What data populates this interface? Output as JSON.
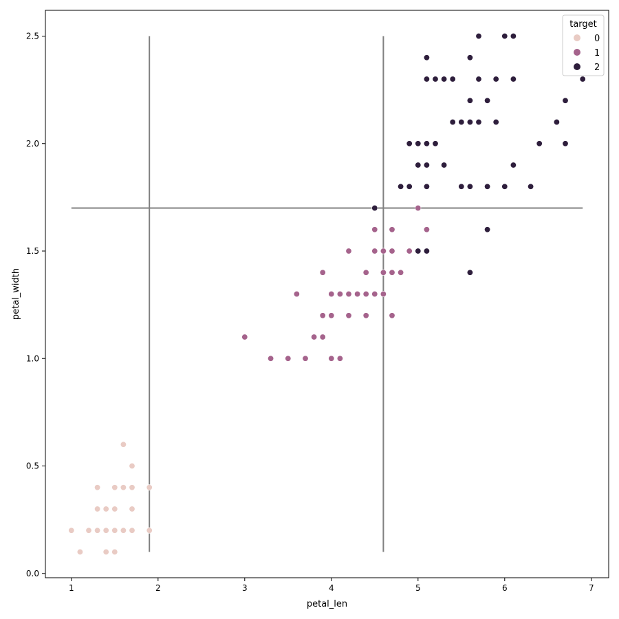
{
  "chart_data": {
    "type": "scatter",
    "xlabel": "petal_len",
    "ylabel": "petal_width",
    "xlim": [
      0.7,
      7.2
    ],
    "ylim": [
      -0.02,
      2.62
    ],
    "xticks": [
      1,
      2,
      3,
      4,
      5,
      6,
      7
    ],
    "xtick_labels": [
      "1",
      "2",
      "3",
      "4",
      "5",
      "6",
      "7"
    ],
    "yticks": [
      0.0,
      0.5,
      1.0,
      1.5,
      2.0,
      2.5
    ],
    "ytick_labels": [
      "0.0",
      "0.5",
      "1.0",
      "1.5",
      "2.0",
      "2.5"
    ],
    "grid": false,
    "legend": {
      "title": "target",
      "placement": "top-right",
      "entries": [
        {
          "label": "0",
          "color": "#e9cbc4"
        },
        {
          "label": "1",
          "color": "#a5638c"
        },
        {
          "label": "2",
          "color": "#2e1e3c"
        }
      ]
    },
    "series": [
      {
        "name": "0",
        "color": "#e9cbc4",
        "points": [
          [
            1.0,
            0.2
          ],
          [
            1.1,
            0.1
          ],
          [
            1.2,
            0.2
          ],
          [
            1.3,
            0.2
          ],
          [
            1.3,
            0.3
          ],
          [
            1.3,
            0.4
          ],
          [
            1.4,
            0.1
          ],
          [
            1.4,
            0.2
          ],
          [
            1.4,
            0.3
          ],
          [
            1.5,
            0.1
          ],
          [
            1.5,
            0.2
          ],
          [
            1.5,
            0.3
          ],
          [
            1.5,
            0.4
          ],
          [
            1.6,
            0.2
          ],
          [
            1.6,
            0.4
          ],
          [
            1.6,
            0.6
          ],
          [
            1.7,
            0.2
          ],
          [
            1.7,
            0.3
          ],
          [
            1.7,
            0.4
          ],
          [
            1.7,
            0.5
          ],
          [
            1.9,
            0.2
          ],
          [
            1.9,
            0.4
          ]
        ]
      },
      {
        "name": "1",
        "color": "#a5638c",
        "points": [
          [
            3.0,
            1.1
          ],
          [
            3.3,
            1.0
          ],
          [
            3.5,
            1.0
          ],
          [
            3.6,
            1.3
          ],
          [
            3.7,
            1.0
          ],
          [
            3.8,
            1.1
          ],
          [
            3.9,
            1.1
          ],
          [
            3.9,
            1.2
          ],
          [
            3.9,
            1.4
          ],
          [
            4.0,
            1.0
          ],
          [
            4.0,
            1.2
          ],
          [
            4.0,
            1.3
          ],
          [
            4.1,
            1.0
          ],
          [
            4.1,
            1.3
          ],
          [
            4.2,
            1.2
          ],
          [
            4.2,
            1.3
          ],
          [
            4.2,
            1.5
          ],
          [
            4.3,
            1.3
          ],
          [
            4.4,
            1.2
          ],
          [
            4.4,
            1.3
          ],
          [
            4.4,
            1.4
          ],
          [
            4.5,
            1.3
          ],
          [
            4.5,
            1.5
          ],
          [
            4.5,
            1.6
          ],
          [
            4.6,
            1.3
          ],
          [
            4.6,
            1.4
          ],
          [
            4.6,
            1.5
          ],
          [
            4.7,
            1.2
          ],
          [
            4.7,
            1.4
          ],
          [
            4.7,
            1.5
          ],
          [
            4.7,
            1.6
          ],
          [
            4.8,
            1.4
          ],
          [
            4.9,
            1.5
          ],
          [
            5.0,
            1.7
          ],
          [
            5.1,
            1.6
          ]
        ]
      },
      {
        "name": "2",
        "color": "#2e1e3c",
        "points": [
          [
            4.5,
            1.7
          ],
          [
            4.8,
            1.8
          ],
          [
            4.9,
            1.8
          ],
          [
            4.9,
            2.0
          ],
          [
            5.0,
            1.5
          ],
          [
            5.0,
            1.9
          ],
          [
            5.0,
            2.0
          ],
          [
            5.1,
            1.5
          ],
          [
            5.1,
            1.8
          ],
          [
            5.1,
            1.9
          ],
          [
            5.1,
            2.0
          ],
          [
            5.1,
            2.3
          ],
          [
            5.1,
            2.4
          ],
          [
            5.2,
            2.0
          ],
          [
            5.2,
            2.3
          ],
          [
            5.3,
            1.9
          ],
          [
            5.3,
            2.3
          ],
          [
            5.4,
            2.1
          ],
          [
            5.4,
            2.3
          ],
          [
            5.5,
            1.8
          ],
          [
            5.5,
            2.1
          ],
          [
            5.6,
            1.4
          ],
          [
            5.6,
            1.8
          ],
          [
            5.6,
            2.1
          ],
          [
            5.6,
            2.2
          ],
          [
            5.6,
            2.4
          ],
          [
            5.7,
            2.1
          ],
          [
            5.7,
            2.3
          ],
          [
            5.7,
            2.5
          ],
          [
            5.8,
            1.6
          ],
          [
            5.8,
            1.8
          ],
          [
            5.8,
            2.2
          ],
          [
            5.9,
            2.1
          ],
          [
            5.9,
            2.3
          ],
          [
            6.0,
            1.8
          ],
          [
            6.0,
            2.5
          ],
          [
            6.1,
            1.9
          ],
          [
            6.1,
            2.3
          ],
          [
            6.1,
            2.5
          ],
          [
            6.3,
            1.8
          ],
          [
            6.4,
            2.0
          ],
          [
            6.6,
            2.1
          ],
          [
            6.7,
            2.0
          ],
          [
            6.7,
            2.2
          ],
          [
            6.9,
            2.3
          ]
        ]
      }
    ],
    "reference_lines": [
      {
        "orientation": "vertical",
        "x": 1.9,
        "y_from": 0.1,
        "y_to": 2.5,
        "color": "#808080"
      },
      {
        "orientation": "vertical",
        "x": 4.6,
        "y_from": 0.1,
        "y_to": 2.5,
        "color": "#808080"
      },
      {
        "orientation": "horizontal",
        "y": 1.7,
        "x_from": 1.0,
        "x_to": 6.9,
        "color": "#808080"
      }
    ]
  }
}
